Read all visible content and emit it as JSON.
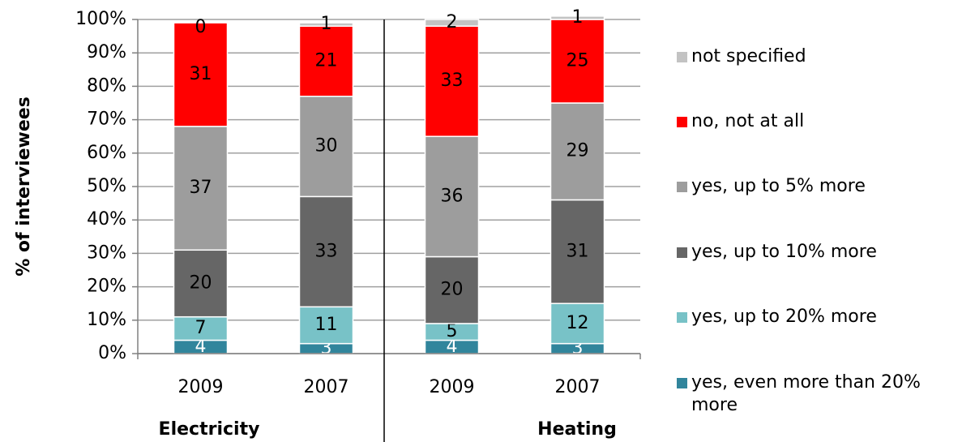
{
  "chart_data": {
    "type": "stacked_bar",
    "y_label": "% of interviewees",
    "categories": [
      "2009",
      "2007",
      "2009",
      "2007"
    ],
    "group_labels": [
      "Electricity",
      "Heating"
    ],
    "ylim": [
      0,
      100
    ],
    "yticks": [
      {
        "value": 0,
        "label": "0%"
      },
      {
        "value": 10,
        "label": "10%"
      },
      {
        "value": 20,
        "label": "20%"
      },
      {
        "value": 30,
        "label": "30%"
      },
      {
        "value": 40,
        "label": "40%"
      },
      {
        "value": 50,
        "label": "50%"
      },
      {
        "value": 60,
        "label": "60%"
      },
      {
        "value": 70,
        "label": "70%"
      },
      {
        "value": 80,
        "label": "80%"
      },
      {
        "value": 90,
        "label": "90%"
      },
      {
        "value": 100,
        "label": "100%"
      }
    ],
    "grid": true,
    "series": [
      {
        "name": "yes, even more than 20% more",
        "color": "#31859c",
        "values": [
          4,
          3,
          4,
          3
        ]
      },
      {
        "name": "yes, up to 20% more",
        "color": "#78c2c7",
        "values": [
          7,
          11,
          5,
          12
        ]
      },
      {
        "name": "yes, up to 10% more",
        "color": "#666666",
        "values": [
          20,
          33,
          20,
          31
        ]
      },
      {
        "name": "yes, up to 5% more",
        "color": "#9d9d9d",
        "values": [
          37,
          30,
          36,
          29
        ]
      },
      {
        "name": "no, not at all",
        "color": "#ff0000",
        "values": [
          31,
          21,
          33,
          25
        ]
      },
      {
        "name": "not specified",
        "color": "#c3c3c3",
        "values": [
          0,
          1,
          2,
          1
        ]
      }
    ]
  }
}
